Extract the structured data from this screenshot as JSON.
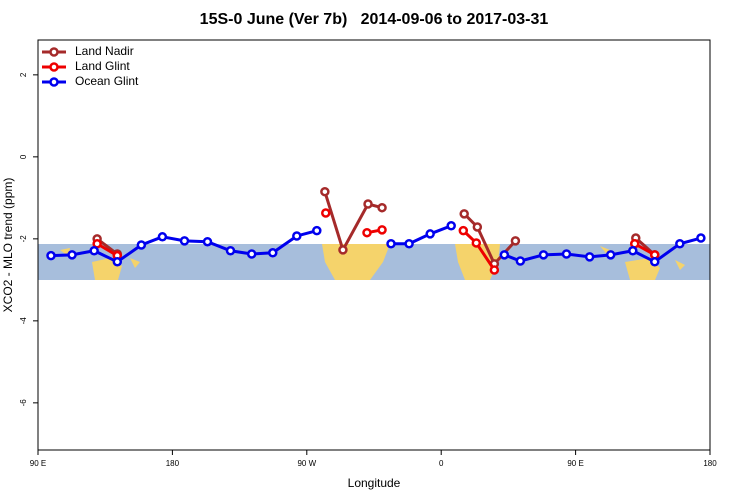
{
  "chart_data": {
    "type": "line",
    "title": "15S-0 June (Ver 7b)   2014-09-06 to 2017-03-31",
    "x_label": "Longitude",
    "y_label": "XCO2 - MLO trend (ppm)",
    "xlim": [
      90,
      540
    ],
    "ylim": [
      -7.15,
      2.85
    ],
    "xticks": [
      {
        "value": 90,
        "label": "90 E"
      },
      180,
      {
        "value": 270,
        "label": "90 W"
      },
      {
        "value": 360,
        "label": "0"
      },
      {
        "value": 450,
        "label": "90 E"
      },
      {
        "value": 540,
        "label": "180"
      }
    ],
    "yticks": [
      2,
      0,
      -2,
      -4,
      -6
    ],
    "legend": "top-left",
    "series": [
      {
        "name": "Land Nadir",
        "color": "#a52a2a",
        "x": [
          129.6,
          143.1,
          null,
          282.1,
          294.2,
          311.0,
          320.4,
          null,
          375.4,
          384.2,
          395.6,
          409.7,
          null,
          490.3,
          503.0
        ],
        "values": [
          -2.0,
          -2.37,
          null,
          -0.85,
          -2.27,
          -1.15,
          -1.24,
          null,
          -1.39,
          -1.71,
          -2.61,
          -2.05,
          null,
          -1.98,
          -2.39
        ]
      },
      {
        "name": "Land Glint",
        "color": "#ee0000",
        "x": [
          129.6,
          143.1,
          null,
          282.7,
          null,
          310.3,
          320.4,
          null,
          374.8,
          383.5,
          395.6,
          null,
          489.6,
          503.0
        ],
        "values": [
          -2.12,
          -2.41,
          null,
          -1.37,
          null,
          -1.85,
          -1.78,
          null,
          -1.8,
          -2.1,
          -2.76,
          null,
          -2.12,
          -2.39
        ]
      },
      {
        "name": "Ocean Glint",
        "color": "#0000ee",
        "x": [
          98.7,
          112.8,
          127.6,
          143.1,
          159.2,
          173.3,
          188.1,
          203.5,
          218.9,
          233.1,
          247.2,
          263.3,
          276.7,
          null,
          326.4,
          338.5,
          352.6,
          366.7,
          null,
          402.3,
          413.0,
          428.5,
          443.9,
          459.4,
          473.5,
          488.3,
          503.0,
          519.8,
          533.9
        ],
        "values": [
          -2.41,
          -2.39,
          -2.29,
          -2.56,
          -2.15,
          -1.95,
          -2.05,
          -2.07,
          -2.29,
          -2.37,
          -2.34,
          -1.93,
          -1.8,
          null,
          -2.12,
          -2.12,
          -1.88,
          -1.68,
          null,
          -2.39,
          -2.54,
          -2.39,
          -2.37,
          -2.44,
          -2.39,
          -2.29,
          -2.56,
          -2.12,
          -1.98
        ]
      }
    ]
  }
}
